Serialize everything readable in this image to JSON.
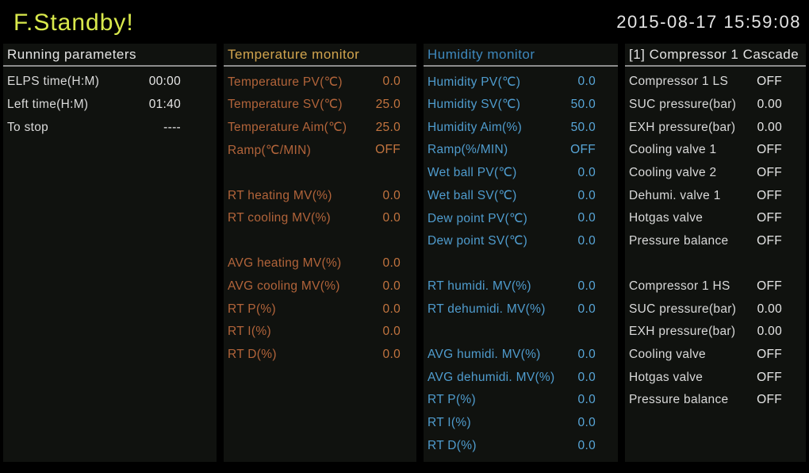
{
  "header": {
    "title": "F.Standby!",
    "datetime": "2015-08-17 15:59:08"
  },
  "colors": {
    "page_background": "#000000",
    "panel_background": "#10120f",
    "title_green": "#d9e94c",
    "white_text": "#e4e4e4",
    "temperature_header": "#d1a44e",
    "temperature_text": "#b2643a",
    "humidity_header": "#3e88bd",
    "humidity_text": "#4f9cce",
    "header_divider": "#8d8d8d"
  },
  "panels": [
    {
      "id": "running-parameters",
      "title": "Running parameters",
      "rows": [
        {
          "label": "ELPS time(H:M)",
          "value": "00:00"
        },
        {
          "label": "Left time(H:M)",
          "value": "01:40"
        },
        {
          "label": "To stop",
          "value": "----"
        }
      ]
    },
    {
      "id": "temperature-monitor",
      "title": "Temperature monitor",
      "rows": [
        {
          "label": "Temperature PV(℃)",
          "value": "0.0"
        },
        {
          "label": "Temperature SV(℃)",
          "value": "25.0"
        },
        {
          "label": "Temperature Aim(℃)",
          "value": "25.0"
        },
        {
          "label": "Ramp(℃/MIN)",
          "value": "OFF"
        },
        {
          "spacer": true
        },
        {
          "label": "RT heating MV(%)",
          "value": "0.0"
        },
        {
          "label": "RT cooling MV(%)",
          "value": "0.0"
        },
        {
          "spacer": true
        },
        {
          "label": "AVG heating MV(%)",
          "value": "0.0"
        },
        {
          "label": "AVG cooling MV(%)",
          "value": "0.0"
        },
        {
          "label": "RT P(%)",
          "value": "0.0"
        },
        {
          "label": "RT I(%)",
          "value": "0.0"
        },
        {
          "label": "RT D(%)",
          "value": "0.0"
        }
      ]
    },
    {
      "id": "humidity-monitor",
      "title": "Humidity monitor",
      "rows": [
        {
          "label": "Humidity PV(℃)",
          "value": "0.0"
        },
        {
          "label": "Humidity SV(℃)",
          "value": "50.0"
        },
        {
          "label": "Humidity Aim(%)",
          "value": "50.0"
        },
        {
          "label": "Ramp(%/MIN)",
          "value": "OFF"
        },
        {
          "label": "Wet ball PV(℃)",
          "value": "0.0"
        },
        {
          "label": "Wet ball SV(℃)",
          "value": "0.0"
        },
        {
          "label": "Dew point PV(℃)",
          "value": "0.0"
        },
        {
          "label": "Dew point SV(℃)",
          "value": "0.0"
        },
        {
          "spacer": true
        },
        {
          "label": "RT humidi. MV(%)",
          "value": "0.0"
        },
        {
          "label": "RT dehumidi. MV(%)",
          "value": "0.0"
        },
        {
          "spacer": true
        },
        {
          "label": "AVG humidi. MV(%)",
          "value": "0.0"
        },
        {
          "label": "AVG dehumidi. MV(%)",
          "value": "0.0"
        },
        {
          "label": "RT P(%)",
          "value": "0.0"
        },
        {
          "label": "RT I(%)",
          "value": "0.0"
        },
        {
          "label": "RT D(%)",
          "value": "0.0"
        }
      ]
    },
    {
      "id": "compressor-1-cascade",
      "title": "[1] Compressor 1 Cascade",
      "rows": [
        {
          "label": "Compressor 1 LS",
          "value": "OFF"
        },
        {
          "label": "SUC pressure(bar)",
          "value": "0.00"
        },
        {
          "label": "EXH pressure(bar)",
          "value": "0.00"
        },
        {
          "label": "Cooling valve 1",
          "value": "OFF"
        },
        {
          "label": "Cooling valve 2",
          "value": "OFF"
        },
        {
          "label": "Dehumi. valve 1",
          "value": "OFF"
        },
        {
          "label": "Hotgas valve",
          "value": "OFF"
        },
        {
          "label": "Pressure balance",
          "value": "OFF"
        },
        {
          "spacer": true
        },
        {
          "label": "Compressor 1 HS",
          "value": "OFF"
        },
        {
          "label": "SUC pressure(bar)",
          "value": "0.00"
        },
        {
          "label": "EXH pressure(bar)",
          "value": "0.00"
        },
        {
          "label": "Cooling valve",
          "value": "OFF"
        },
        {
          "label": "Hotgas valve",
          "value": "OFF"
        },
        {
          "label": "Pressure balance",
          "value": "OFF"
        }
      ]
    }
  ]
}
